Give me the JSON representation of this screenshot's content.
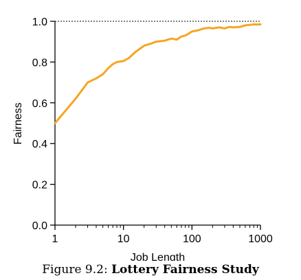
{
  "chart_data": {
    "type": "line",
    "xlabel": "Job Length",
    "ylabel": "Fairness",
    "xscale": "log",
    "xlim": [
      1,
      1000
    ],
    "ylim": [
      0.0,
      1.0
    ],
    "x_ticks": [
      "1",
      "10",
      "100",
      "1000"
    ],
    "y_ticks": [
      "0.0",
      "0.2",
      "0.4",
      "0.6",
      "0.8",
      "1.0"
    ],
    "reference_line": {
      "y": 1.0,
      "style": "dotted"
    },
    "grid": false,
    "line_color": "#f5a623",
    "series": [
      {
        "x": [
          1,
          2,
          3,
          4,
          5,
          6,
          7,
          8,
          10,
          12,
          15,
          20,
          25,
          30,
          40,
          50,
          60,
          70,
          80,
          90,
          100,
          120,
          150,
          180,
          200,
          250,
          300,
          350,
          400,
          500,
          600,
          700,
          800,
          900,
          1000
        ],
        "y": [
          0.5,
          0.62,
          0.7,
          0.72,
          0.74,
          0.77,
          0.79,
          0.8,
          0.805,
          0.82,
          0.85,
          0.88,
          0.89,
          0.9,
          0.905,
          0.915,
          0.91,
          0.925,
          0.93,
          0.94,
          0.95,
          0.955,
          0.965,
          0.968,
          0.965,
          0.97,
          0.965,
          0.972,
          0.97,
          0.972,
          0.98,
          0.982,
          0.985,
          0.984,
          0.985
        ]
      }
    ]
  },
  "caption": {
    "prefix": "Figure 9.2: ",
    "title": "Lottery Fairness Study"
  }
}
